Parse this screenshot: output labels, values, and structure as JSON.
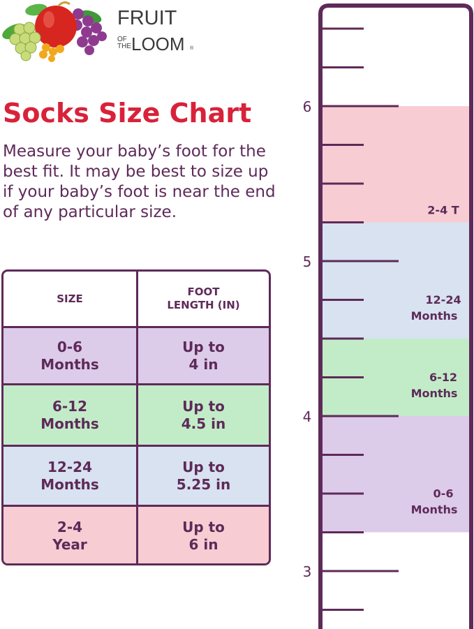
{
  "brand": {
    "name_top": "FRUIT",
    "name_of": "OF",
    "name_the": "THE",
    "name_loom": "LOOM",
    "registered": "®"
  },
  "title": "Socks Size Chart",
  "description": "Measure your baby’s foot for the best fit. It may be best to size up if your baby’s foot is near the end of any particular size.",
  "table": {
    "headers": {
      "size": "SIZE",
      "length_line1": "FOOT",
      "length_line2": "LENGTH (IN)"
    },
    "rows": [
      {
        "size_line1": "0-6",
        "size_line2": "Months",
        "len_line1": "Up to",
        "len_line2": "4 in",
        "color": "#dcccea"
      },
      {
        "size_line1": "6-12",
        "size_line2": "Months",
        "len_line1": "Up to",
        "len_line2": "4.5 in",
        "color": "#c2ecc8"
      },
      {
        "size_line1": "12-24",
        "size_line2": "Months",
        "len_line1": "Up to",
        "len_line2": "5.25 in",
        "color": "#d8e2f0"
      },
      {
        "size_line1": "2-4",
        "size_line2": "Year",
        "len_line1": "Up to",
        "len_line2": "6 in",
        "color": "#f7cdd3"
      }
    ]
  },
  "ruler": {
    "numbers": [
      "6",
      "5",
      "4",
      "3"
    ],
    "bands": [
      {
        "label_line1": "2-4 T",
        "label_line2": "",
        "from": 5.25,
        "to": 6,
        "color": "#f7cdd3"
      },
      {
        "label_line1": "12-24",
        "label_line2": "Months",
        "from": 4.5,
        "to": 5.25,
        "color": "#d8e2f0"
      },
      {
        "label_line1": "6-12",
        "label_line2": "Months",
        "from": 4,
        "to": 4.5,
        "color": "#c2ecc8"
      },
      {
        "label_line1": "0-6",
        "label_line2": "Months",
        "from": 3.25,
        "to": 4,
        "color": "#dcccea"
      }
    ]
  },
  "colors": {
    "accent_red": "#d8223a",
    "text_purple": "#5e2a59"
  }
}
